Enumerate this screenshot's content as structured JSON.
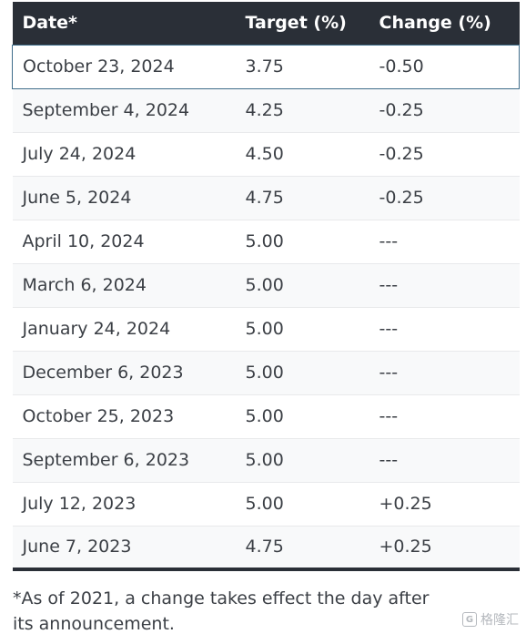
{
  "table": {
    "headers": {
      "date": "Date*",
      "target": "Target (%)",
      "change": "Change (%)"
    },
    "rows": [
      {
        "date": "October 23, 2024",
        "target": "3.75",
        "change": "-0.50"
      },
      {
        "date": "September 4, 2024",
        "target": "4.25",
        "change": "-0.25"
      },
      {
        "date": "July 24, 2024",
        "target": "4.50",
        "change": "-0.25"
      },
      {
        "date": "June 5, 2024",
        "target": "4.75",
        "change": "-0.25"
      },
      {
        "date": "April 10, 2024",
        "target": "5.00",
        "change": "---"
      },
      {
        "date": "March 6, 2024",
        "target": "5.00",
        "change": "---"
      },
      {
        "date": "January 24, 2024",
        "target": "5.00",
        "change": "---"
      },
      {
        "date": "December 6, 2023",
        "target": "5.00",
        "change": "---"
      },
      {
        "date": "October 25, 2023",
        "target": "5.00",
        "change": "---"
      },
      {
        "date": "September 6, 2023",
        "target": "5.00",
        "change": "---"
      },
      {
        "date": "July 12, 2023",
        "target": "5.00",
        "change": "+0.25"
      },
      {
        "date": "June 7, 2023",
        "target": "4.75",
        "change": "+0.25"
      }
    ],
    "selected_row": 0
  },
  "footnote": "*As of 2021, a change takes effect the day after its announcement.",
  "watermark": {
    "text": "格隆汇",
    "icon": "g-logo-icon"
  },
  "colors": {
    "header_bg": "#2a2f37",
    "header_text": "#ffffff",
    "body_text": "#3b3f45",
    "row_alt_bg": "#f8f9fa",
    "selected_border": "#3f6d8a"
  }
}
